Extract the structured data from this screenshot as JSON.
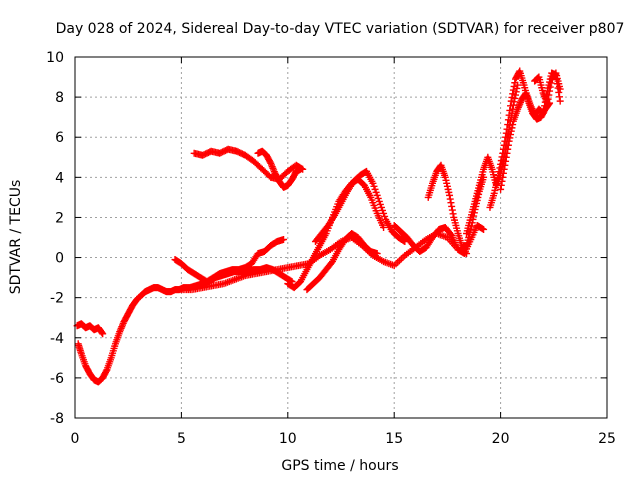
{
  "chart_data": {
    "type": "scatter",
    "title": "Day 028 of 2024, Sidereal Day-to-day VTEC variation (SDTVAR) for receiver p807",
    "xlabel": "GPS time / hours",
    "ylabel": "SDTVAR / TECUs",
    "xlim": [
      0,
      25
    ],
    "ylim": [
      -8,
      10
    ],
    "xticks": [
      "0",
      "5",
      "10",
      "15",
      "20",
      "25"
    ],
    "yticks": [
      "-8",
      "-6",
      "-4",
      "-2",
      "0",
      "2",
      "4",
      "6",
      "8",
      "10"
    ],
    "grid": true,
    "marker": "+",
    "color": "#ff0000",
    "series": [
      {
        "x": [
          0.15,
          0.3,
          0.5,
          0.7,
          0.9,
          1.1,
          1.3,
          1.5,
          1.7,
          1.9,
          2.1,
          2.3,
          2.5,
          2.7,
          2.9,
          3.1,
          3.3,
          3.5,
          3.7,
          3.9,
          4.1,
          4.3,
          4.5,
          4.7,
          4.9,
          5.1,
          5.4,
          5.7,
          6.0,
          6.3,
          6.6,
          6.9,
          7.2,
          7.5,
          7.8,
          8.1,
          8.4,
          8.7,
          9.0,
          9.3,
          9.6,
          9.9,
          10.2
        ],
        "y": [
          -4.3,
          -4.8,
          -5.4,
          -5.8,
          -6.1,
          -6.2,
          -6.0,
          -5.6,
          -5.0,
          -4.3,
          -3.7,
          -3.2,
          -2.8,
          -2.4,
          -2.1,
          -1.9,
          -1.7,
          -1.6,
          -1.5,
          -1.5,
          -1.6,
          -1.7,
          -1.7,
          -1.6,
          -1.6,
          -1.5,
          -1.5,
          -1.4,
          -1.3,
          -1.2,
          -1.0,
          -0.9,
          -0.8,
          -0.7,
          -0.7,
          -0.7,
          -0.6,
          -0.6,
          -0.5,
          -0.6,
          -0.8,
          -1.0,
          -1.2
        ]
      },
      {
        "x": [
          0.1,
          0.3,
          0.5,
          0.7,
          0.9,
          1.1,
          1.3
        ],
        "y": [
          -3.4,
          -3.3,
          -3.5,
          -3.4,
          -3.6,
          -3.5,
          -3.8
        ]
      },
      {
        "x": [
          5.6,
          6.0,
          6.4,
          6.8,
          7.2,
          7.6,
          8.0,
          8.4,
          8.8,
          9.2,
          9.6,
          10.0,
          10.4,
          10.7
        ],
        "y": [
          5.2,
          5.1,
          5.3,
          5.2,
          5.4,
          5.3,
          5.1,
          4.8,
          4.4,
          4.0,
          3.9,
          4.3,
          4.6,
          4.4
        ]
      },
      {
        "x": [
          8.6,
          8.8,
          9.0,
          9.2,
          9.4,
          9.6,
          9.8,
          10.0,
          10.2,
          10.4,
          10.6
        ],
        "y": [
          5.2,
          5.3,
          5.1,
          4.7,
          4.2,
          3.8,
          3.5,
          3.6,
          3.9,
          4.3,
          4.4
        ]
      },
      {
        "x": [
          4.7,
          5.0,
          5.3,
          5.6,
          5.9,
          6.2,
          6.5,
          6.8,
          7.1,
          7.4,
          7.7,
          8.0,
          8.3,
          8.6,
          8.9,
          9.2,
          9.5,
          9.8
        ],
        "y": [
          -0.1,
          -0.3,
          -0.6,
          -0.8,
          -1.0,
          -1.2,
          -1.0,
          -0.8,
          -0.7,
          -0.6,
          -0.6,
          -0.5,
          -0.3,
          0.2,
          0.3,
          0.6,
          0.8,
          0.9
        ]
      },
      {
        "x": [
          5.0,
          5.5,
          6.0,
          6.5,
          7.0,
          7.5,
          8.0,
          8.5,
          9.0,
          9.5,
          10.0,
          10.5,
          11.0,
          11.5,
          12.0,
          12.5,
          13.0,
          13.5,
          14.0,
          14.5,
          15.0,
          15.5,
          16.0,
          16.5,
          17.0,
          17.5,
          18.0,
          18.4
        ],
        "y": [
          -1.6,
          -1.6,
          -1.5,
          -1.4,
          -1.3,
          -1.1,
          -0.9,
          -0.8,
          -0.7,
          -0.6,
          -0.5,
          -0.4,
          -0.3,
          0.1,
          0.4,
          0.8,
          1.0,
          0.6,
          0.1,
          -0.2,
          -0.4,
          0.1,
          0.5,
          0.9,
          1.2,
          1.0,
          0.4,
          0.2
        ]
      },
      {
        "x": [
          10.0,
          10.3,
          10.6,
          10.9,
          11.2,
          11.5,
          11.8,
          12.1,
          12.4,
          12.7,
          13.0,
          13.3,
          13.6,
          13.9,
          14.2,
          14.5
        ],
        "y": [
          -1.3,
          -1.5,
          -1.2,
          -0.6,
          0.0,
          0.6,
          1.2,
          2.0,
          2.8,
          3.3,
          3.7,
          3.9,
          3.6,
          3.0,
          2.2,
          1.5
        ]
      },
      {
        "x": [
          11.3,
          11.6,
          11.9,
          12.2,
          12.5,
          12.8,
          13.1,
          13.4,
          13.7,
          14.0,
          14.3,
          14.6,
          14.9,
          15.2,
          15.5
        ],
        "y": [
          0.8,
          1.2,
          1.6,
          2.1,
          2.7,
          3.3,
          3.8,
          4.1,
          4.3,
          3.7,
          2.8,
          1.9,
          1.3,
          1.0,
          0.8
        ]
      },
      {
        "x": [
          10.9,
          11.2,
          11.5,
          11.8,
          12.1,
          12.4,
          12.7,
          13.0,
          13.3,
          13.6,
          13.9,
          14.2
        ],
        "y": [
          -1.6,
          -1.3,
          -1.0,
          -0.6,
          -0.2,
          0.4,
          0.9,
          1.2,
          1.0,
          0.6,
          0.3,
          0.2
        ]
      },
      {
        "x": [
          15.0,
          15.3,
          15.6,
          15.9,
          16.2,
          16.5,
          16.8,
          17.1,
          17.4,
          17.7,
          18.0,
          18.3,
          18.6,
          18.9,
          19.2
        ],
        "y": [
          1.6,
          1.3,
          1.0,
          0.6,
          0.3,
          0.5,
          1.0,
          1.4,
          1.5,
          1.1,
          0.4,
          0.2,
          0.9,
          1.6,
          1.4
        ]
      },
      {
        "x": [
          16.6,
          16.8,
          17.0,
          17.2,
          17.4,
          17.6,
          17.8,
          18.0,
          18.2,
          18.4,
          18.6,
          18.8,
          19.0,
          19.2
        ],
        "y": [
          3.0,
          3.7,
          4.3,
          4.6,
          4.0,
          3.1,
          2.0,
          1.2,
          0.5,
          0.6,
          1.4,
          2.4,
          3.3,
          4.0
        ]
      },
      {
        "x": [
          18.4,
          18.6,
          18.8,
          19.0,
          19.2,
          19.4,
          19.6,
          19.8,
          20.0,
          20.2,
          20.4,
          20.6,
          20.8
        ],
        "y": [
          1.2,
          2.0,
          2.8,
          3.6,
          4.4,
          5.0,
          4.4,
          3.6,
          4.2,
          5.2,
          6.4,
          7.6,
          8.6
        ]
      },
      {
        "x": [
          19.5,
          19.7,
          19.9,
          20.1,
          20.3,
          20.5,
          20.7,
          20.9,
          21.1,
          21.3,
          21.5,
          21.7,
          21.9,
          22.1,
          22.3
        ],
        "y": [
          2.5,
          3.2,
          4.1,
          5.2,
          6.4,
          7.8,
          8.9,
          9.3,
          8.6,
          7.8,
          7.2,
          6.9,
          7.0,
          7.4,
          7.7
        ]
      },
      {
        "x": [
          20.0,
          20.2,
          20.4,
          20.6,
          20.8,
          21.0,
          21.2,
          21.4,
          21.6,
          21.8,
          22.0,
          22.2,
          22.4,
          22.6,
          22.8
        ],
        "y": [
          3.4,
          4.6,
          5.8,
          6.8,
          7.4,
          7.9,
          8.2,
          7.6,
          7.1,
          7.4,
          7.2,
          8.3,
          9.2,
          9.1,
          7.8
        ]
      },
      {
        "x": [
          21.6,
          21.8,
          22.0,
          22.2,
          22.4,
          22.6,
          22.8
        ],
        "y": [
          8.8,
          9.0,
          8.2,
          7.7,
          8.9,
          9.2,
          8.4
        ]
      }
    ]
  }
}
